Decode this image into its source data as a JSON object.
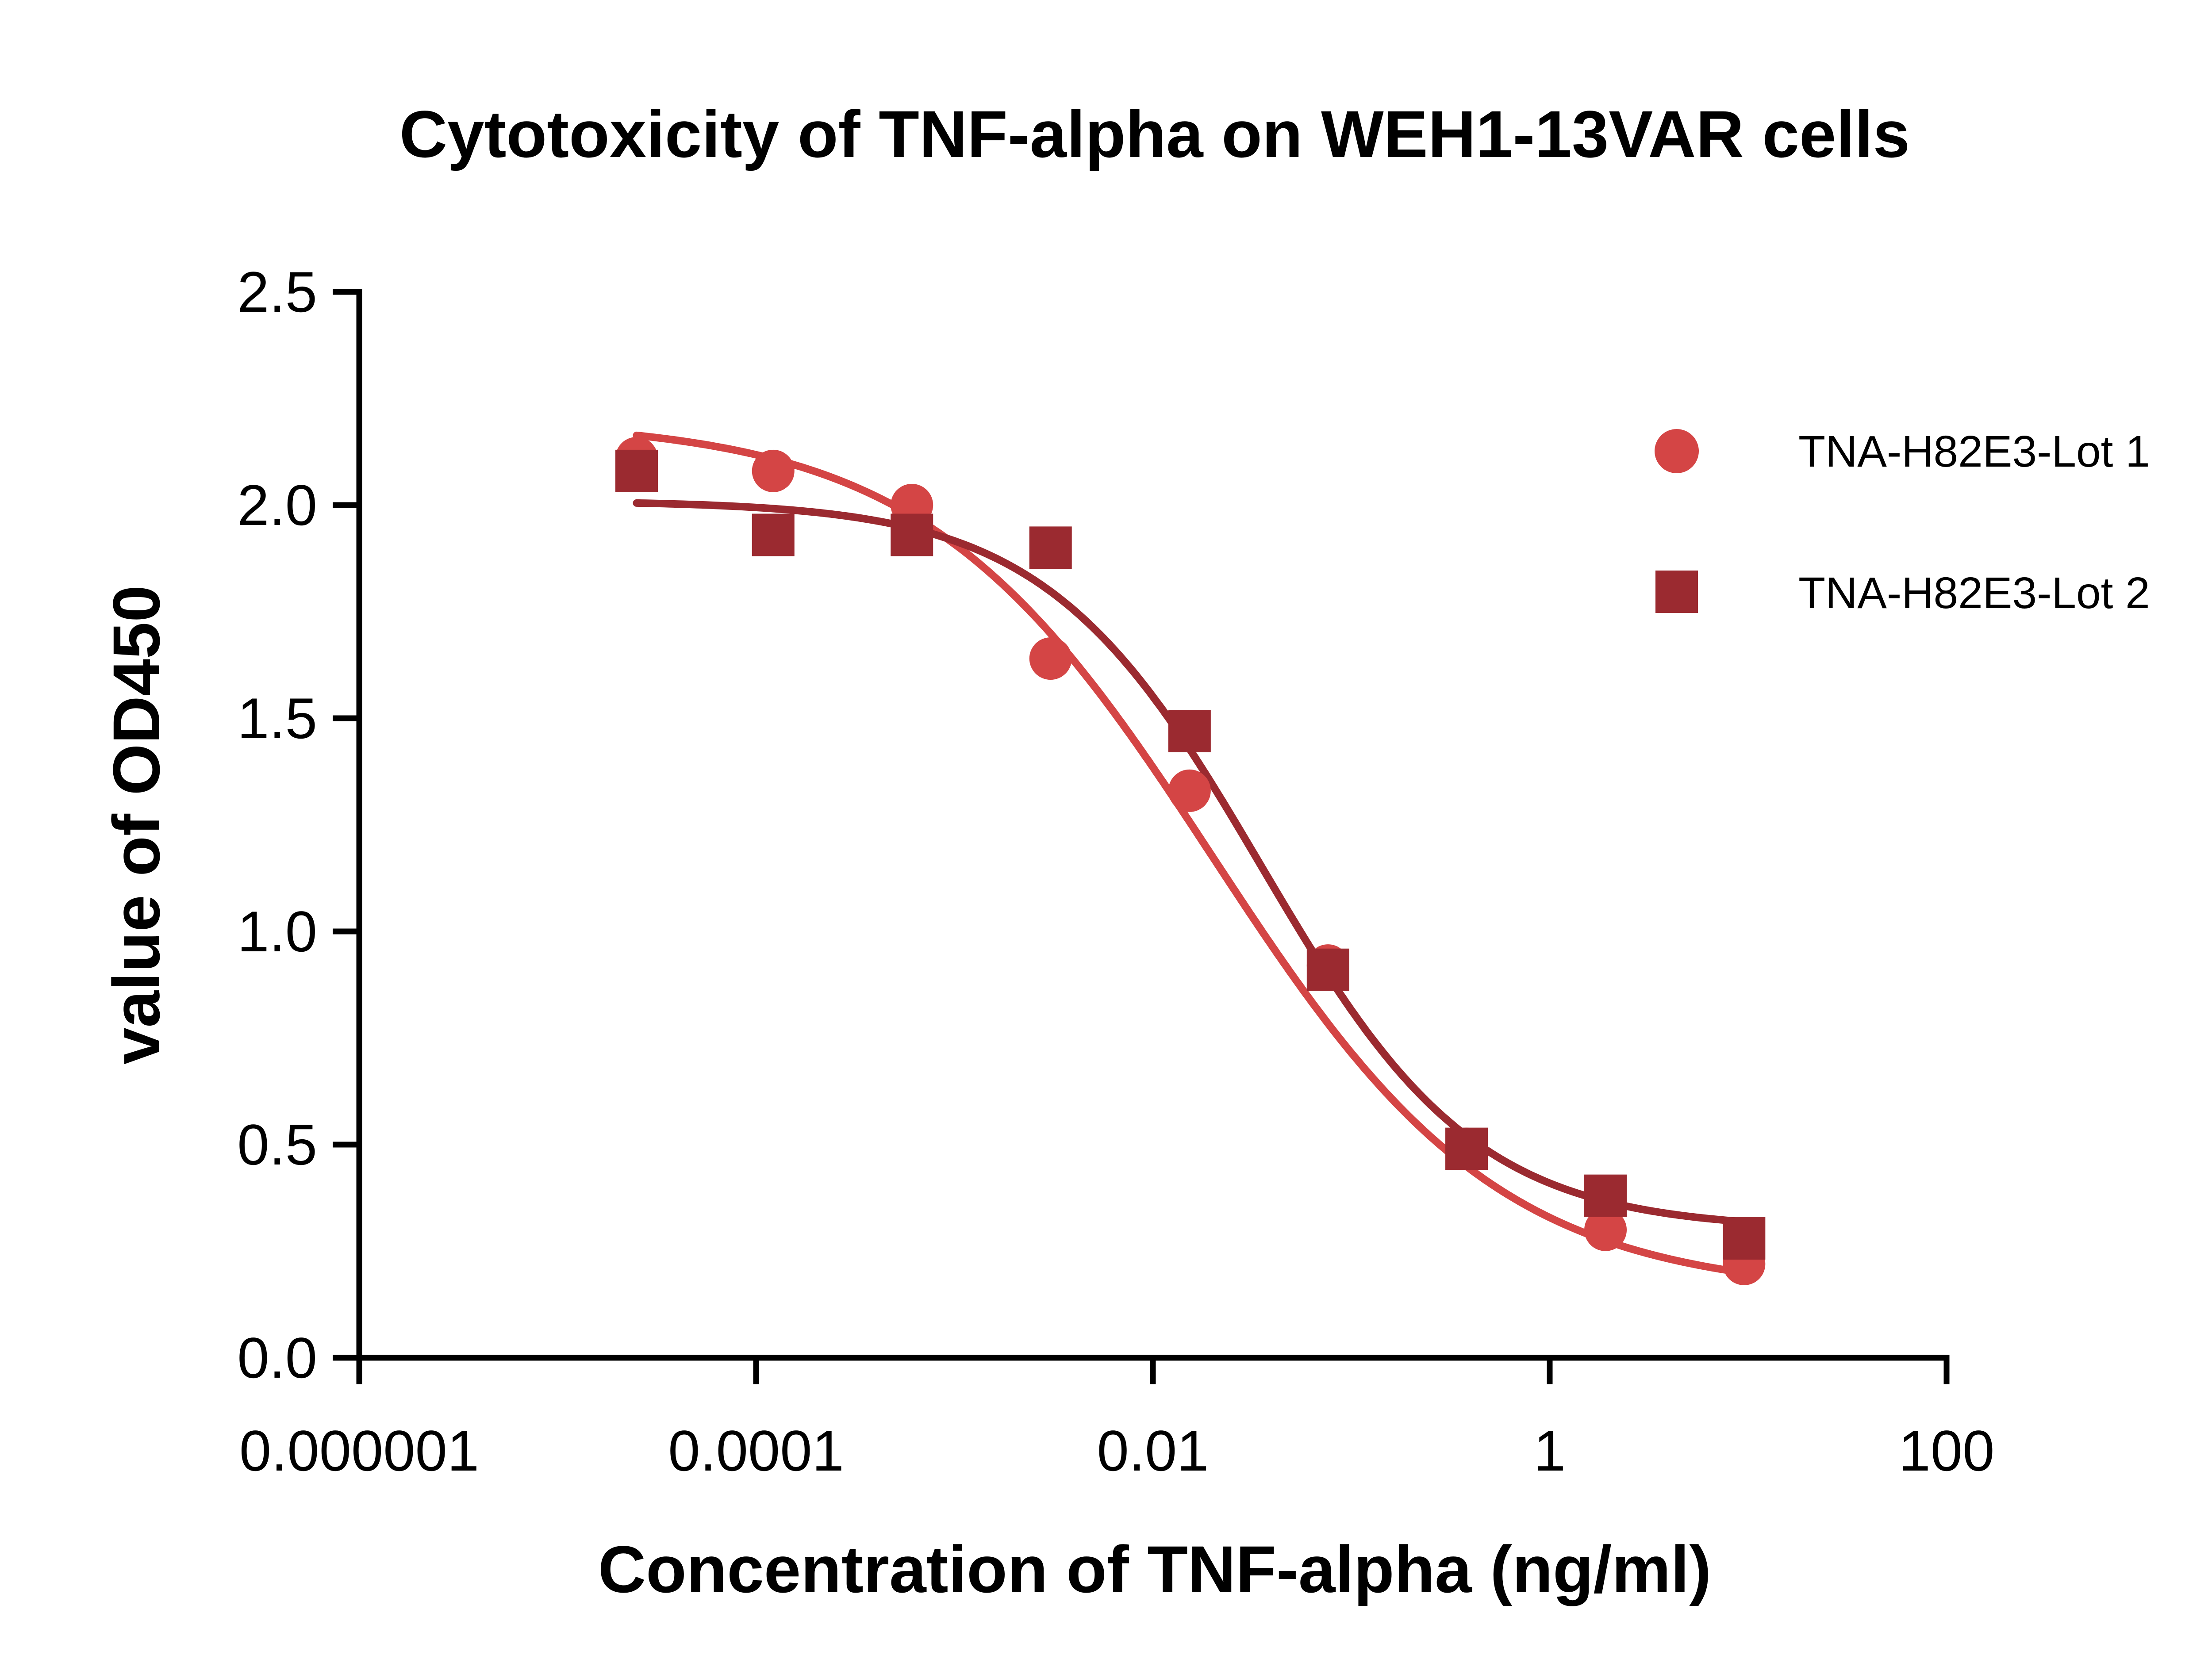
{
  "chart_data": {
    "type": "scatter",
    "title": "Cytotoxicity of TNF-alpha on WEH1-13VAR cells",
    "xlabel": "Concentration of TNF-alpha (ng/ml)",
    "ylabel": "value of OD450",
    "xscale": "log",
    "xlim": [
      1e-06,
      100
    ],
    "ylim": [
      0,
      2.5
    ],
    "x_tick_labels": [
      "0.000001",
      "0.0001",
      "0.01",
      "1",
      "100"
    ],
    "x_tick_values": [
      1e-06,
      0.0001,
      0.01,
      1,
      100
    ],
    "y_tick_labels": [
      "0.0",
      "0.5",
      "1.0",
      "1.5",
      "2.0",
      "2.5"
    ],
    "y_tick_values": [
      0,
      0.5,
      1.0,
      1.5,
      2.0,
      2.5
    ],
    "legend_position": "top-right",
    "series": [
      {
        "name": "TNA-H82E3-Lot 1",
        "marker": "circle",
        "color": "#d44545",
        "x": [
          2.5e-05,
          0.000122,
          0.00061,
          0.00305,
          0.0153,
          0.0763,
          0.381,
          1.91,
          9.54
        ],
        "y": [
          2.11,
          2.08,
          2.0,
          1.64,
          1.33,
          0.92,
          0.49,
          0.3,
          0.22
        ],
        "fit": {
          "top": 2.2,
          "bottom": 0.15,
          "ec50": 0.02,
          "hill": 0.6
        }
      },
      {
        "name": "TNA-H82E3-Lot 2",
        "marker": "square",
        "color": "#9b2a30",
        "x": [
          2.5e-05,
          0.000122,
          0.00061,
          0.00305,
          0.0153,
          0.0763,
          0.381,
          1.91,
          9.54
        ],
        "y": [
          2.08,
          1.93,
          1.93,
          1.9,
          1.47,
          0.91,
          0.49,
          0.38,
          0.28
        ],
        "fit": {
          "top": 2.01,
          "bottom": 0.3,
          "ec50": 0.035,
          "hill": 0.8
        }
      }
    ]
  }
}
